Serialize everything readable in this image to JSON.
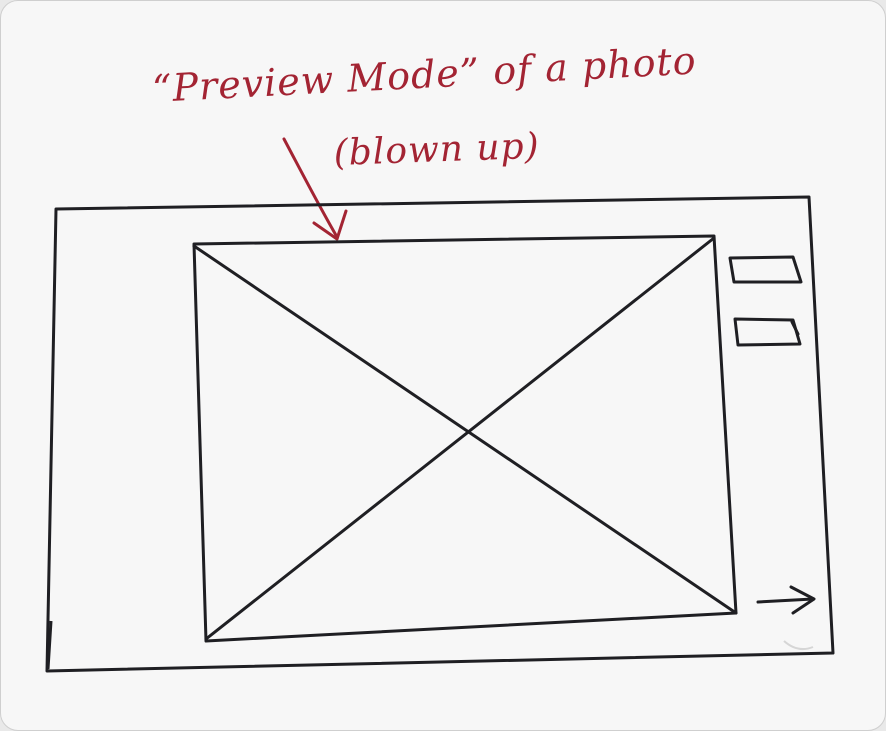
{
  "annotation": {
    "title": "“Preview Mode” of a photo",
    "subtitle": "(blown up)"
  },
  "colors": {
    "ink": "#1f1f23",
    "annotation_ink": "#a32433",
    "paper": "#f7f7f7"
  },
  "icons": {
    "photo": "image-placeholder-icon",
    "side_button_1": "button-placeholder-icon",
    "side_button_2": "button-placeholder-icon",
    "next": "arrow-right-icon"
  }
}
